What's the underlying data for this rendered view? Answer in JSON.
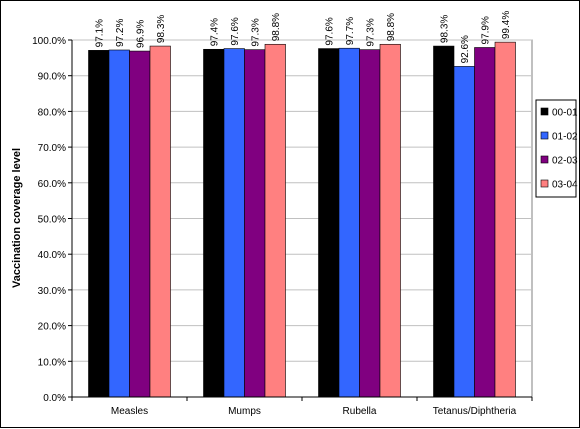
{
  "chart_data": {
    "type": "bar",
    "title": "",
    "xlabel": "",
    "ylabel": "Vaccination coverage level",
    "categories": [
      "Measles",
      "Mumps",
      "Rubella",
      "Tetanus/Diphtheria"
    ],
    "series": [
      {
        "name": "00-01",
        "color": "#000000",
        "values": [
          97.1,
          97.4,
          97.6,
          98.3
        ],
        "labels": [
          "97.1%",
          "97.4%",
          "97.6%",
          "98.3%"
        ]
      },
      {
        "name": "01-02",
        "color": "#3366FF",
        "values": [
          97.2,
          97.6,
          97.7,
          92.6
        ],
        "labels": [
          "97.2%",
          "97.6%",
          "97.7%",
          "92.6%"
        ]
      },
      {
        "name": "02-03",
        "color": "#800080",
        "values": [
          96.9,
          97.3,
          97.3,
          97.9
        ],
        "labels": [
          "96.9%",
          "97.3%",
          "97.3%",
          "97.9%"
        ]
      },
      {
        "name": "03-04",
        "color": "#FF8080",
        "values": [
          98.3,
          98.8,
          98.8,
          99.4
        ],
        "labels": [
          "98.3%",
          "98.8%",
          "98.8%",
          "99.4%"
        ]
      }
    ],
    "ylim": [
      0,
      100
    ],
    "yticks": [
      0,
      10,
      20,
      30,
      40,
      50,
      60,
      70,
      80,
      90,
      100
    ],
    "ytick_labels": [
      "0.0%",
      "10.0%",
      "20.0%",
      "30.0%",
      "40.0%",
      "50.0%",
      "60.0%",
      "70.0%",
      "80.0%",
      "90.0%",
      "100.0%"
    ],
    "grid": true,
    "plot_background": "#ffffff",
    "legend_position": "right"
  }
}
